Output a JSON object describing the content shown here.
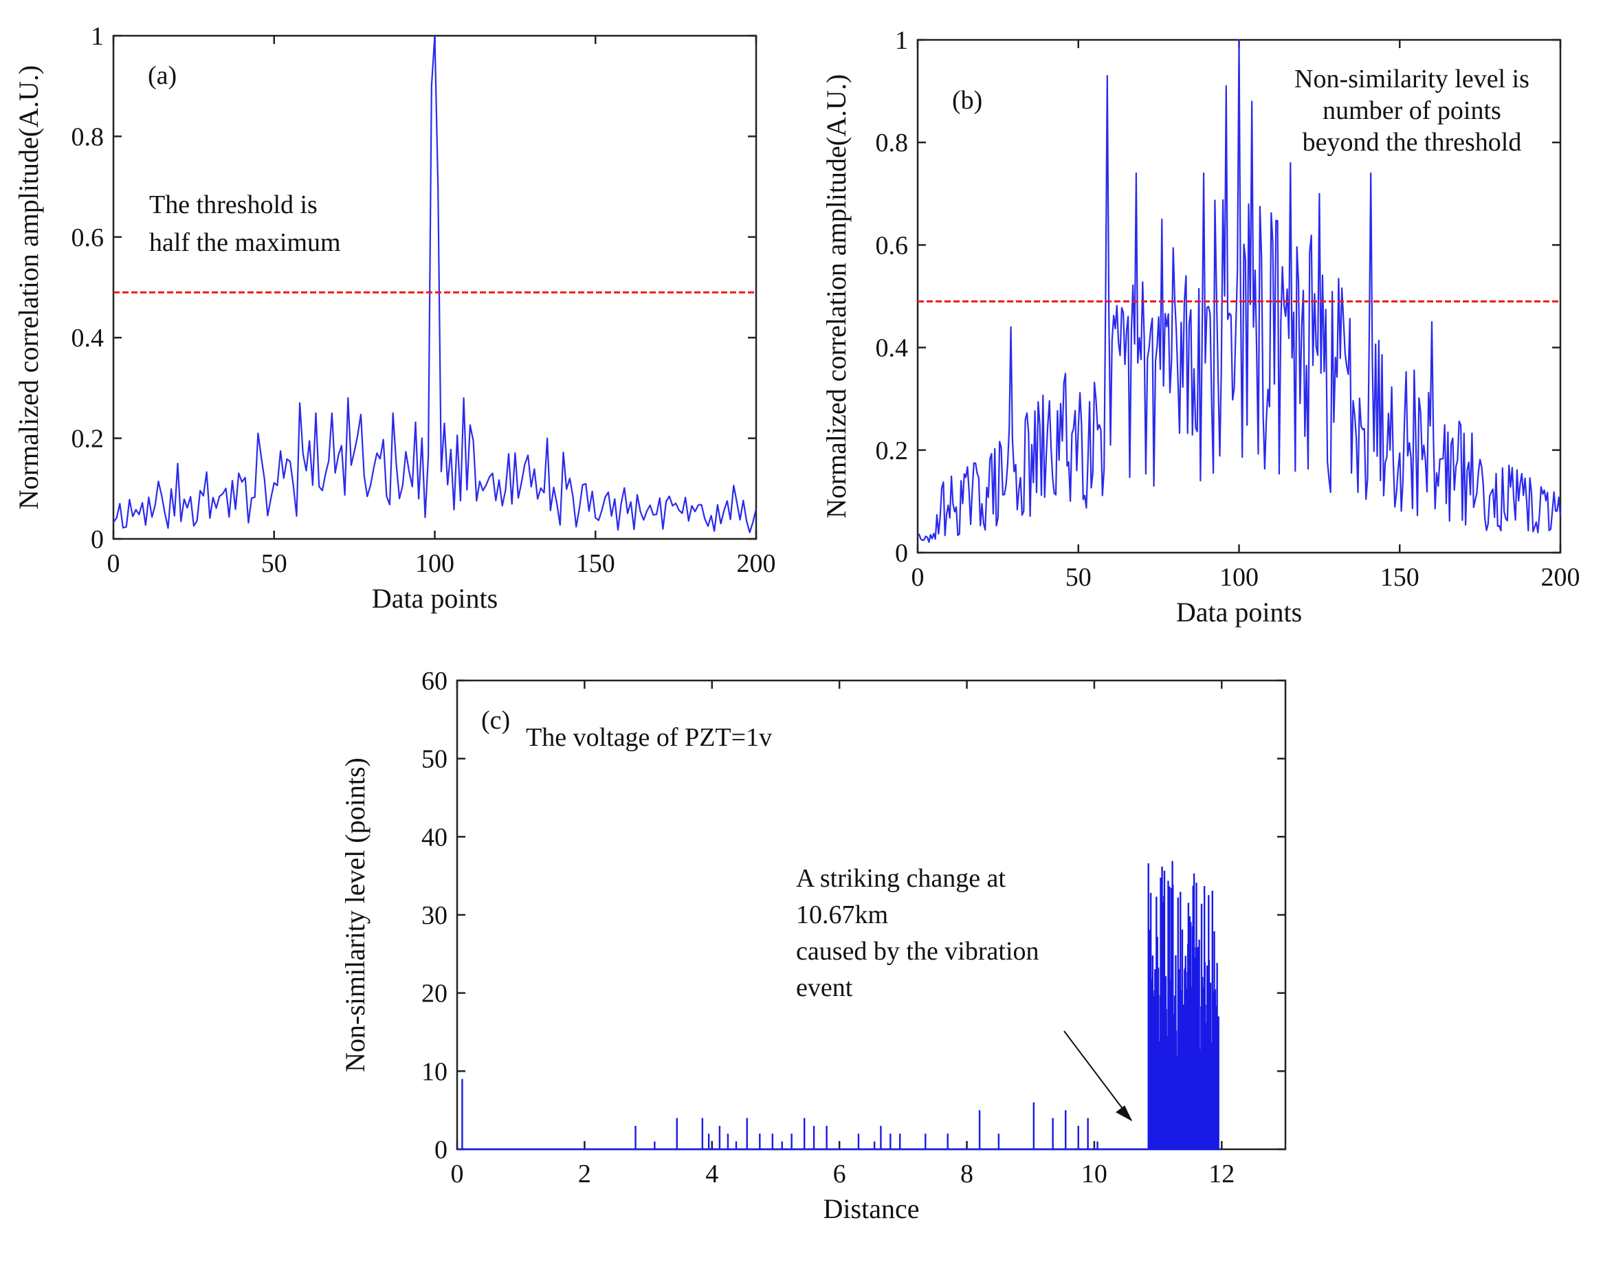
{
  "chart_data": [
    {
      "id": "a",
      "type": "line",
      "panel_label": "(a)",
      "xlabel": "Data points",
      "ylabel": "Normalized correlation amplitude(A.U.)",
      "xlim": [
        0,
        200
      ],
      "ylim": [
        0,
        1
      ],
      "xticks": [
        0,
        50,
        100,
        150,
        200
      ],
      "xtick_labels": [
        "0",
        "50",
        "100",
        "150",
        "200"
      ],
      "yticks": [
        0,
        0.2,
        0.4,
        0.6,
        0.8,
        1
      ],
      "ytick_labels": [
        "0",
        "0.2",
        "0.4",
        "0.6",
        "0.8",
        "1"
      ],
      "threshold": 0.49,
      "annotation_lines": [
        "The threshold is",
        "half the maximum"
      ],
      "series": [
        {
          "name": "correlation",
          "color": "#2a2aee",
          "seed": 11,
          "base": "a"
        }
      ]
    },
    {
      "id": "b",
      "type": "line",
      "panel_label": "(b)",
      "xlabel": "Data points",
      "ylabel": "Normalized correlation amplitude(A.U.)",
      "xlim": [
        0,
        200
      ],
      "ylim": [
        0,
        1
      ],
      "xticks": [
        0,
        50,
        100,
        150,
        200
      ],
      "xtick_labels": [
        "0",
        "50",
        "100",
        "150",
        "200"
      ],
      "yticks": [
        0,
        0.2,
        0.4,
        0.6,
        0.8,
        1
      ],
      "ytick_labels": [
        "0",
        "0.2",
        "0.4",
        "0.6",
        "0.8",
        "1"
      ],
      "threshold": 0.49,
      "annotation_lines": [
        "Non-similarity level is",
        "number of points",
        "beyond the threshold"
      ],
      "peaks": [
        [
          29,
          0.44
        ],
        [
          59,
          0.93
        ],
        [
          68,
          0.74
        ],
        [
          76,
          0.65
        ],
        [
          89,
          0.74
        ],
        [
          96,
          0.91
        ],
        [
          100,
          1.0
        ],
        [
          104,
          0.88
        ],
        [
          116,
          0.76
        ],
        [
          125,
          0.7
        ],
        [
          141,
          0.74
        ],
        [
          160,
          0.45
        ]
      ],
      "series": [
        {
          "name": "correlation",
          "color": "#2a2aee",
          "seed": 29,
          "base": "b"
        }
      ]
    },
    {
      "id": "c",
      "type": "bar",
      "panel_label": "(c)",
      "xlabel": "Distance",
      "ylabel": "Non-similarity level (points)",
      "xlim": [
        0,
        13
      ],
      "ylim": [
        0,
        60
      ],
      "xticks": [
        0,
        2,
        4,
        6,
        8,
        10,
        12
      ],
      "xtick_labels": [
        "0",
        "2",
        "4",
        "6",
        "8",
        "10",
        "12"
      ],
      "yticks": [
        0,
        10,
        20,
        30,
        40,
        50,
        60
      ],
      "ytick_labels": [
        "0",
        "10",
        "20",
        "30",
        "40",
        "50",
        "60"
      ],
      "title_annotation": "The voltage of PZT=1v",
      "annotation_lines": [
        "A striking change at",
        "10.67km",
        "caused by the vibration",
        "event"
      ],
      "event_start_km": 10.67,
      "sparse_spikes": [
        [
          0.08,
          9
        ],
        [
          2.8,
          3
        ],
        [
          3.1,
          1
        ],
        [
          3.45,
          4
        ],
        [
          3.85,
          4
        ],
        [
          3.95,
          2
        ],
        [
          4.12,
          3
        ],
        [
          4.25,
          2
        ],
        [
          4.38,
          1
        ],
        [
          4.55,
          4
        ],
        [
          4.75,
          2
        ],
        [
          4.95,
          2
        ],
        [
          5.1,
          1
        ],
        [
          5.25,
          2
        ],
        [
          5.45,
          4
        ],
        [
          5.6,
          3
        ],
        [
          5.8,
          3
        ],
        [
          6.3,
          2
        ],
        [
          6.55,
          1
        ],
        [
          6.65,
          3
        ],
        [
          6.8,
          2
        ],
        [
          6.95,
          2
        ],
        [
          7.35,
          2
        ],
        [
          7.7,
          2
        ],
        [
          8.2,
          5
        ],
        [
          8.5,
          2
        ],
        [
          9.05,
          6
        ],
        [
          9.35,
          4
        ],
        [
          9.55,
          5
        ],
        [
          9.75,
          3
        ],
        [
          9.9,
          4
        ],
        [
          10.05,
          1
        ]
      ],
      "dense_region": {
        "start": 10.85,
        "end": 11.95,
        "max": 37,
        "seed": 7
      },
      "series": [
        {
          "name": "non-similarity",
          "color": "#1a1ae6"
        }
      ]
    }
  ]
}
